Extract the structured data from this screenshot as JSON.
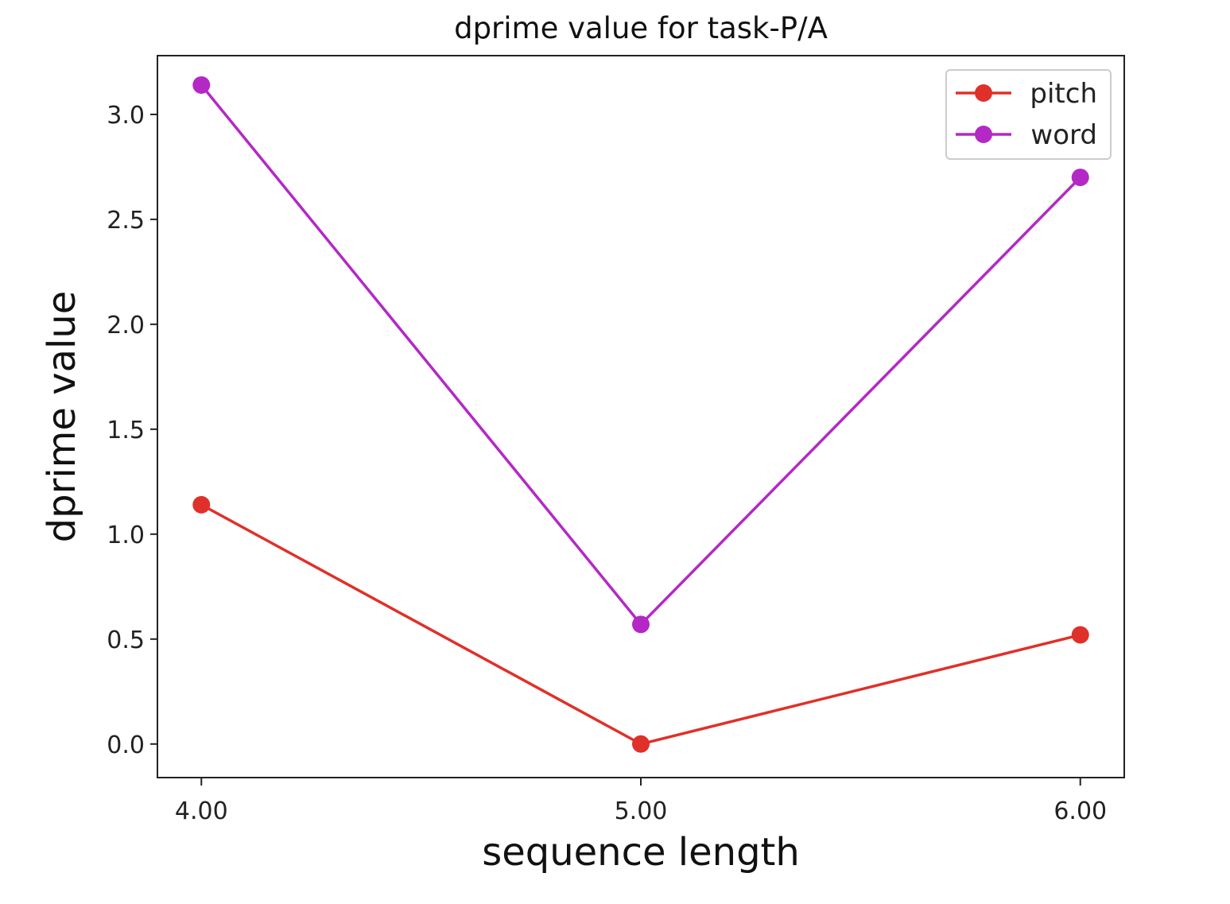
{
  "chart_data": {
    "type": "line",
    "title": "dprime value for task-P/A",
    "xlabel": "sequence length",
    "ylabel": "dprime value",
    "x": [
      4.0,
      5.0,
      6.0
    ],
    "x_tick_labels": [
      "4.00",
      "5.00",
      "6.00"
    ],
    "y_tick_values": [
      0.0,
      0.5,
      1.0,
      1.5,
      2.0,
      2.5,
      3.0
    ],
    "y_tick_labels": [
      "0.0",
      "0.5",
      "1.0",
      "1.5",
      "2.0",
      "2.5",
      "3.0"
    ],
    "xlim": [
      3.9,
      6.1
    ],
    "ylim": [
      -0.16,
      3.28
    ],
    "grid": false,
    "legend_position": "top-right",
    "series": [
      {
        "name": "pitch",
        "color": "#e0302a",
        "values": [
          1.14,
          0.0,
          0.52
        ]
      },
      {
        "name": "word",
        "color": "#b428c6",
        "values": [
          3.14,
          0.57,
          2.7
        ]
      }
    ]
  }
}
